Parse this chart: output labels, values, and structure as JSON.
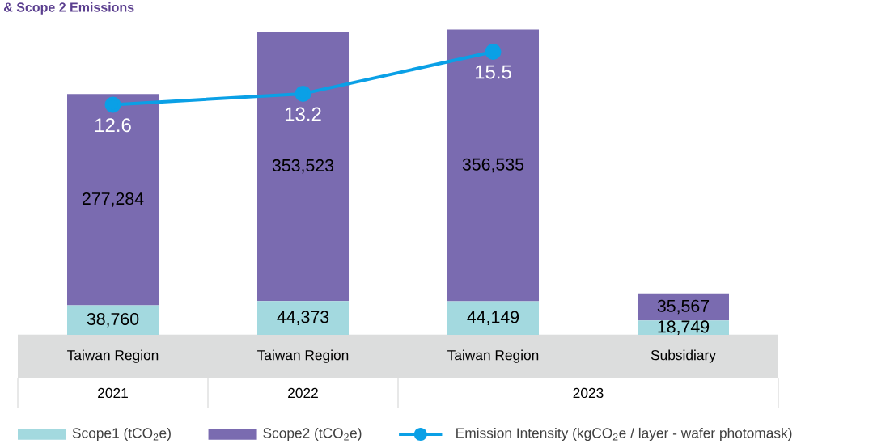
{
  "chart_data": {
    "type": "bar",
    "title": "& Scope 2 Emissions",
    "categories": [
      "Taiwan Region",
      "Taiwan Region",
      "Taiwan Region",
      "Subsidiary"
    ],
    "stacked": true,
    "series": [
      {
        "name": "Scope1 (tCO$_{2}$e)",
        "color": "#a3d9df",
        "values": [
          38760,
          44373,
          44149,
          18749
        ],
        "value_labels": [
          "38,760",
          "44,373",
          "44,149",
          "18,749"
        ]
      },
      {
        "name": "Scope2 (tCO$_{2}$e)",
        "color": "#7a6bb0",
        "values": [
          277284,
          353523,
          356535,
          35567
        ],
        "value_labels": [
          "277,284",
          "353,523",
          "356,535",
          "35,567"
        ]
      },
      {
        "name": "Emission Intensity (kgCO$_{2}$e / layer - wafer photomask)",
        "type": "line",
        "axis": "y2",
        "color": "#0aa0e6",
        "values": [
          12.6,
          13.2,
          15.5,
          null
        ],
        "value_labels": [
          "12.6",
          "13.2",
          "15.5",
          null
        ]
      }
    ],
    "marker": "circle",
    "line_style": "solid",
    "legend": "bottom",
    "annotations": [
      "2021",
      "2022",
      "2023"
    ]
  }
}
